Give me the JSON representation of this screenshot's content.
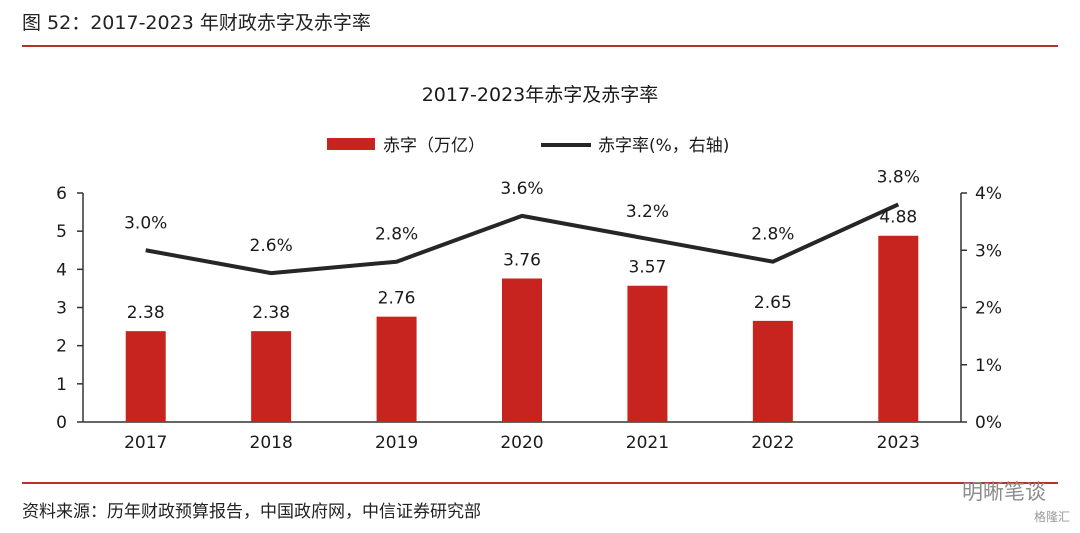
{
  "figure_title": "图 52：2017-2023 年财政赤字及赤字率",
  "source": "资料来源：历年财政预算报告，中国政府网，中信证券研究部",
  "watermark": "明晰笔谈",
  "watermark2": "格隆汇",
  "colors": {
    "bar": "#c7231f",
    "line": "#262626",
    "rule": "#b5322a"
  },
  "chart_data": {
    "type": "bar",
    "title": "2017-2023年赤字及赤字率",
    "categories": [
      "2017",
      "2018",
      "2019",
      "2020",
      "2021",
      "2022",
      "2023"
    ],
    "series": [
      {
        "name": "赤字（万亿）",
        "type": "bar",
        "axis": "left",
        "values": [
          2.38,
          2.38,
          2.76,
          3.76,
          3.57,
          2.65,
          4.88
        ],
        "labels": [
          "2.38",
          "2.38",
          "2.76",
          "3.76",
          "3.57",
          "2.65",
          "4.88"
        ]
      },
      {
        "name": "赤字率(%，右轴)",
        "type": "line",
        "axis": "right",
        "values": [
          3.0,
          2.6,
          2.8,
          3.6,
          3.2,
          2.8,
          3.8
        ],
        "labels": [
          "3.0%",
          "2.6%",
          "2.8%",
          "3.6%",
          "3.2%",
          "2.8%",
          "3.8%"
        ]
      }
    ],
    "y_left": {
      "ylim": [
        0,
        6
      ],
      "ticks": [
        "0",
        "1",
        "2",
        "3",
        "4",
        "5",
        "6"
      ]
    },
    "y_right": {
      "ylim": [
        0,
        4
      ],
      "ticks": [
        "0%",
        "1%",
        "2%",
        "3%",
        "4%"
      ]
    },
    "legend_position": "top-center",
    "grid": false
  }
}
